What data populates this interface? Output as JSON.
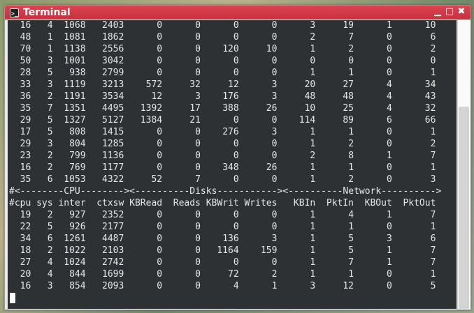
{
  "window": {
    "title": "Terminal",
    "icons": {
      "app": "terminal-icon",
      "minimize": "minimize-icon",
      "maximize": "maximize-icon",
      "close": "close-icon"
    }
  },
  "colors": {
    "titlebar": "#d03a48",
    "terminal_bg": "#2d3133",
    "text": "#e6e6e6"
  },
  "top_rows": [
    [
      16,
      4,
      1068,
      2403,
      0,
      0,
      0,
      0,
      3,
      19,
      1,
      10
    ],
    [
      48,
      1,
      1081,
      1862,
      0,
      0,
      0,
      0,
      2,
      7,
      0,
      6
    ],
    [
      70,
      1,
      1138,
      2556,
      0,
      0,
      120,
      10,
      1,
      2,
      0,
      2
    ],
    [
      50,
      3,
      1001,
      3042,
      0,
      0,
      0,
      0,
      0,
      0,
      0,
      0
    ],
    [
      28,
      5,
      938,
      2799,
      0,
      0,
      0,
      0,
      1,
      1,
      0,
      1
    ],
    [
      33,
      3,
      1119,
      3213,
      572,
      32,
      12,
      3,
      20,
      27,
      4,
      34
    ],
    [
      36,
      2,
      1191,
      3534,
      12,
      3,
      176,
      3,
      48,
      48,
      4,
      43
    ],
    [
      35,
      7,
      1351,
      4495,
      1392,
      17,
      388,
      26,
      10,
      25,
      4,
      32
    ],
    [
      29,
      5,
      1327,
      5127,
      1384,
      21,
      0,
      0,
      114,
      89,
      6,
      66
    ],
    [
      17,
      5,
      808,
      1415,
      0,
      0,
      276,
      3,
      1,
      1,
      0,
      1
    ],
    [
      29,
      3,
      804,
      1285,
      0,
      0,
      0,
      0,
      1,
      2,
      0,
      2
    ],
    [
      23,
      2,
      799,
      1136,
      0,
      0,
      0,
      0,
      2,
      8,
      1,
      7
    ],
    [
      16,
      2,
      769,
      1177,
      0,
      0,
      348,
      26,
      1,
      1,
      0,
      1
    ],
    [
      35,
      6,
      1053,
      4322,
      52,
      7,
      0,
      0,
      1,
      2,
      0,
      3
    ]
  ],
  "separator": "#<--------CPU--------><----------Disks-----------><----------Network---------->",
  "headers": [
    "#cpu",
    "sys",
    "inter",
    "ctxsw",
    "KBRead",
    "Reads",
    "KBWrit",
    "Writes",
    "KBIn",
    "PktIn",
    "KBOut",
    "PktOut"
  ],
  "bottom_rows": [
    [
      19,
      2,
      927,
      2352,
      0,
      0,
      0,
      0,
      1,
      4,
      1,
      7
    ],
    [
      22,
      5,
      926,
      2177,
      0,
      0,
      0,
      0,
      1,
      1,
      0,
      1
    ],
    [
      34,
      6,
      1261,
      4487,
      0,
      0,
      136,
      3,
      1,
      5,
      3,
      6
    ],
    [
      18,
      2,
      1022,
      2103,
      0,
      0,
      1164,
      159,
      1,
      5,
      1,
      7
    ],
    [
      27,
      4,
      1024,
      2742,
      0,
      0,
      0,
      0,
      1,
      7,
      1,
      7
    ],
    [
      20,
      4,
      844,
      1699,
      0,
      0,
      72,
      2,
      1,
      1,
      0,
      1
    ],
    [
      16,
      3,
      854,
      2093,
      0,
      0,
      4,
      1,
      3,
      12,
      0,
      5
    ]
  ]
}
